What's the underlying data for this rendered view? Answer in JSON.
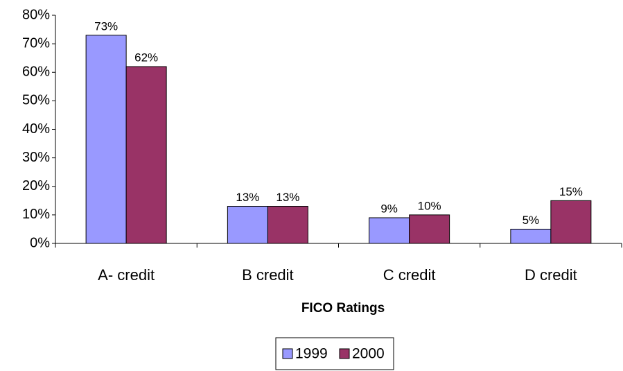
{
  "chart_data": {
    "type": "bar",
    "x_label": "FICO Ratings",
    "categories": [
      "A- credit",
      "B credit",
      "C credit",
      "D credit"
    ],
    "series": [
      {
        "name": "1999",
        "color": "#9999ff",
        "values": [
          73,
          13,
          9,
          5
        ],
        "value_labels": [
          "73%",
          "13%",
          "9%",
          "5%"
        ]
      },
      {
        "name": "2000",
        "color": "#993366",
        "values": [
          62,
          13,
          10,
          15
        ],
        "value_labels": [
          "62%",
          "13%",
          "10%",
          "15%"
        ]
      }
    ],
    "ylim": [
      0,
      80
    ],
    "yticks": [
      {
        "value": 0,
        "label": "0%"
      },
      {
        "value": 10,
        "label": "10%"
      },
      {
        "value": 20,
        "label": "20%"
      },
      {
        "value": 30,
        "label": "30%"
      },
      {
        "value": 40,
        "label": "40%"
      },
      {
        "value": 50,
        "label": "50%"
      },
      {
        "value": 60,
        "label": "60%"
      },
      {
        "value": 70,
        "label": "70%"
      },
      {
        "value": 80,
        "label": "80%"
      }
    ],
    "legend": "bottom"
  }
}
